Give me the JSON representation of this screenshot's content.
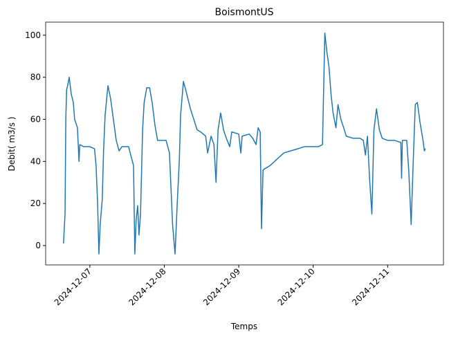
{
  "chart_data": {
    "type": "line",
    "title": "BoismontUS",
    "x_label": "Temps",
    "y_label": "Debit( m3/s )",
    "series": [
      {
        "name": "BoismontUS",
        "color": "#1f77b4",
        "x": [
          "2024-12-06 15:30",
          "2024-12-06 16:00",
          "2024-12-06 16:15",
          "2024-12-06 16:30",
          "2024-12-06 16:50",
          "2024-12-06 17:20",
          "2024-12-06 18:00",
          "2024-12-06 18:40",
          "2024-12-06 19:05",
          "2024-12-06 20:00",
          "2024-12-06 20:30",
          "2024-12-06 20:45",
          "2024-12-06 22:00",
          "2024-12-07 00:00",
          "2024-12-07 01:30",
          "2024-12-07 02:00",
          "2024-12-07 02:30",
          "2024-12-07 02:55",
          "2024-12-07 03:20",
          "2024-12-07 04:00",
          "2024-12-07 04:25",
          "2024-12-07 04:55",
          "2024-12-07 05:50",
          "2024-12-07 06:40",
          "2024-12-07 07:35",
          "2024-12-07 08:30",
          "2024-12-07 09:25",
          "2024-12-07 10:20",
          "2024-12-07 12:30",
          "2024-12-07 13:00",
          "2024-12-07 14:05",
          "2024-12-07 14:30",
          "2024-12-07 14:55",
          "2024-12-07 15:25",
          "2024-12-07 15:50",
          "2024-12-07 16:20",
          "2024-12-07 17:00",
          "2024-12-07 17:30",
          "2024-12-07 18:20",
          "2024-12-07 19:15",
          "2024-12-07 20:05",
          "2024-12-07 21:00",
          "2024-12-07 21:50",
          "2024-12-07 23:25",
          "2024-12-08 00:34",
          "2024-12-08 01:40",
          "2024-12-08 02:40",
          "2024-12-08 03:28",
          "2024-12-08 04:10",
          "2024-12-08 04:50",
          "2024-12-08 05:15",
          "2024-12-08 06:10",
          "2024-12-08 07:15",
          "2024-12-08 08:25",
          "2024-12-08 09:30",
          "2024-12-08 10:35",
          "2024-12-08 11:45",
          "2024-12-08 13:20",
          "2024-12-08 13:58",
          "2024-12-08 15:05",
          "2024-12-08 16:00",
          "2024-12-08 16:40",
          "2024-12-08 17:20",
          "2024-12-08 18:10",
          "2024-12-08 19:05",
          "2024-12-08 20:00",
          "2024-12-08 21:05",
          "2024-12-08 21:45",
          "2024-12-09 00:00",
          "2024-12-09 00:40",
          "2024-12-09 01:05",
          "2024-12-09 03:22",
          "2024-12-09 04:30",
          "2024-12-09 05:35",
          "2024-12-09 06:15",
          "2024-12-09 06:55",
          "2024-12-09 07:20",
          "2024-12-09 07:50",
          "2024-12-09 10:05",
          "2024-12-09 12:18",
          "2024-12-09 14:30",
          "2024-12-09 16:45",
          "2024-12-09 19:00",
          "2024-12-09 21:10",
          "2024-12-09 23:30",
          "2024-12-10 01:40",
          "2024-12-10 03:00",
          "2024-12-10 03:45",
          "2024-12-10 04:25",
          "2024-12-10 05:05",
          "2024-12-10 05:45",
          "2024-12-10 06:25",
          "2024-12-10 07:20",
          "2024-12-10 08:00",
          "2024-12-10 08:55",
          "2024-12-10 09:50",
          "2024-12-10 10:40",
          "2024-12-10 12:50",
          "2024-12-10 15:05",
          "2024-12-10 16:10",
          "2024-12-10 16:50",
          "2024-12-10 17:30",
          "2024-12-10 18:10",
          "2024-12-10 18:55",
          "2024-12-10 19:35",
          "2024-12-10 20:25",
          "2024-12-10 21:20",
          "2024-12-10 22:15",
          "2024-12-11 00:00",
          "2024-12-11 02:15",
          "2024-12-11 04:15",
          "2024-12-11 04:30",
          "2024-12-11 04:45",
          "2024-12-11 06:10",
          "2024-12-11 06:50",
          "2024-12-11 07:35",
          "2024-12-11 08:15",
          "2024-12-11 08:55",
          "2024-12-11 09:35",
          "2024-12-11 10:30",
          "2024-12-11 11:25",
          "2024-12-11 11:50",
          "2024-12-11 12:10"
        ],
        "values": [
          1,
          15,
          60,
          74,
          76,
          80,
          72,
          68,
          60,
          56,
          40,
          48,
          47,
          47,
          46,
          38,
          20,
          -4,
          10,
          22,
          45,
          62,
          76,
          70,
          60,
          50,
          45,
          47,
          47,
          44,
          38,
          -4,
          12,
          19,
          5,
          15,
          55,
          68,
          75,
          75,
          68,
          57,
          50,
          50,
          50,
          44,
          10,
          -4,
          20,
          40,
          62,
          78,
          72,
          65,
          60,
          55,
          54,
          52,
          44,
          52,
          48,
          30,
          55,
          63,
          55,
          51,
          47,
          54,
          53,
          44,
          52,
          53,
          51,
          48,
          56,
          54,
          8,
          36,
          38,
          41,
          44,
          45,
          46,
          47,
          47,
          47,
          48,
          101,
          92,
          85,
          72,
          63,
          56,
          67,
          60,
          56,
          52,
          51,
          51,
          50,
          43,
          52,
          32,
          15,
          55,
          65,
          55,
          51,
          50,
          50,
          49,
          32,
          50,
          50,
          35,
          10,
          40,
          67,
          68,
          58,
          50,
          45,
          46
        ]
      }
    ],
    "xlim": [
      "2024-12-06 09:45",
      "2024-12-11 18:00"
    ],
    "xticks": [
      "2024-12-07",
      "2024-12-08",
      "2024-12-09",
      "2024-12-10",
      "2024-12-11"
    ],
    "ylim": [
      -9.2,
      106.2
    ],
    "yticks": [
      0,
      20,
      40,
      60,
      80,
      100
    ],
    "grid": false
  }
}
